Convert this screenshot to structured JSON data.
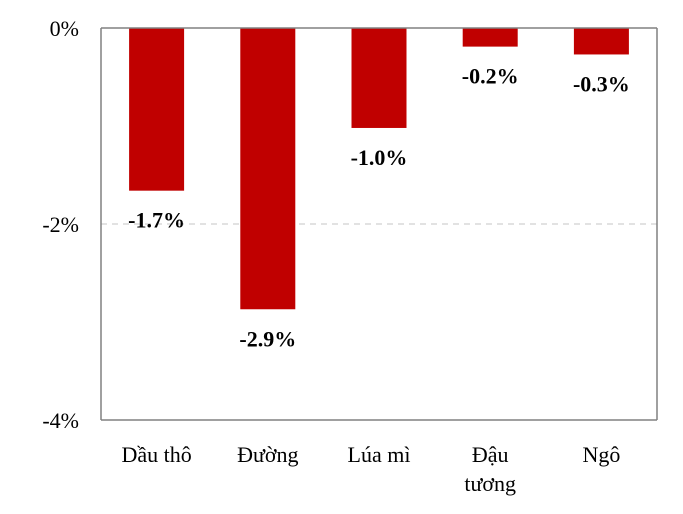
{
  "chart_data": {
    "type": "bar",
    "categories": [
      [
        "Dầu thô"
      ],
      [
        "Đường"
      ],
      [
        "Lúa mì"
      ],
      [
        "Đậu",
        "tương"
      ],
      [
        "Ngô"
      ]
    ],
    "values": [
      -1.66,
      -2.87,
      -1.02,
      -0.19,
      -0.27
    ],
    "data_labels": [
      "-1.7%",
      "-2.9%",
      "-1.0%",
      "-0.2%",
      "-0.3%"
    ],
    "y_ticks": [
      {
        "value": 0,
        "label": "0%"
      },
      {
        "value": -2,
        "label": "-2%"
      },
      {
        "value": -4,
        "label": "-4%"
      }
    ],
    "ylim": [
      -4,
      0
    ],
    "grid": "dashed line at -2%",
    "bar_color": "#C00000",
    "gridline_color": "#D9D9D9",
    "axis_color": "#808080"
  }
}
